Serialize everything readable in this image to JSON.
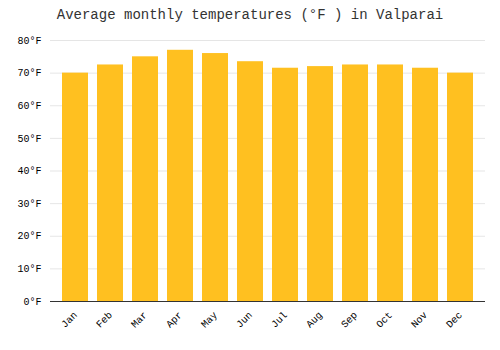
{
  "chart_data": {
    "type": "bar",
    "title": "Average monthly temperatures (°F ) in Valparai",
    "categories": [
      "Jan",
      "Feb",
      "Mar",
      "Apr",
      "May",
      "Jun",
      "Jul",
      "Aug",
      "Sep",
      "Oct",
      "Nov",
      "Dec"
    ],
    "values": [
      70,
      72.5,
      75,
      77,
      76,
      73.5,
      71.5,
      72,
      72.5,
      72.5,
      71.5,
      70
    ],
    "color": "#FFC020",
    "ylim": [
      0,
      80
    ],
    "yticks": [
      {
        "value": 0,
        "label": "0°F"
      },
      {
        "value": 10,
        "label": "10°F"
      },
      {
        "value": 20,
        "label": "20°F"
      },
      {
        "value": 30,
        "label": "30°F"
      },
      {
        "value": 40,
        "label": "40°F"
      },
      {
        "value": 50,
        "label": "50°F"
      },
      {
        "value": 60,
        "label": "60°F"
      },
      {
        "value": 70,
        "label": "70°F"
      },
      {
        "value": 80,
        "label": "80°F"
      }
    ],
    "grid": true
  }
}
